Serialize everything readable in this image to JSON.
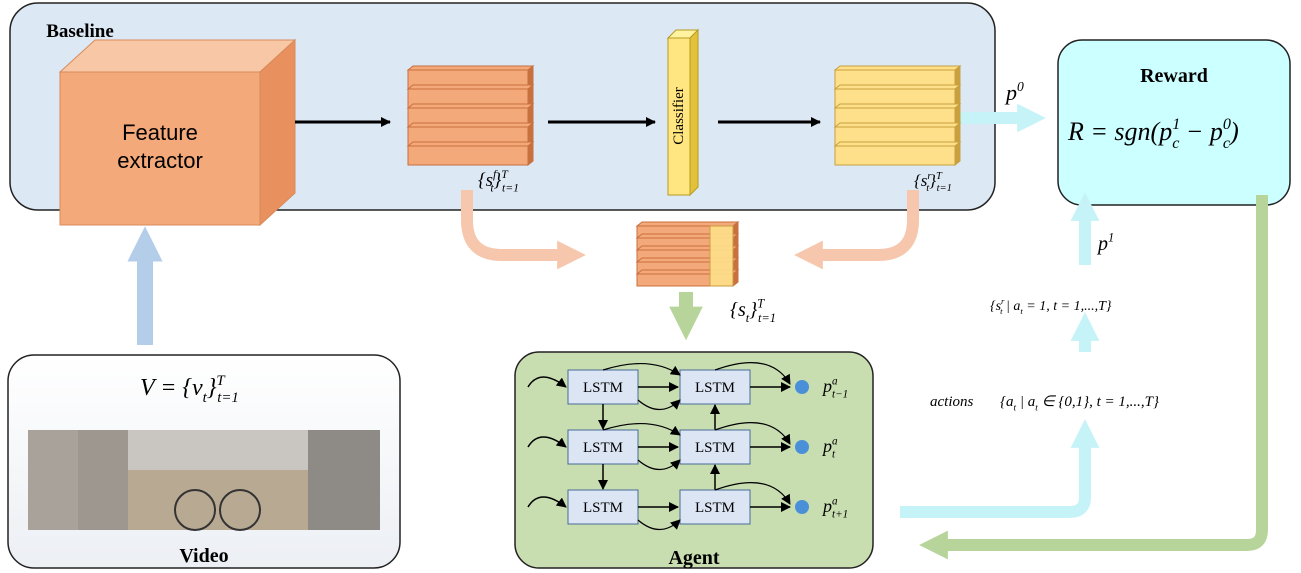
{
  "baseline": {
    "title": "Baseline",
    "feature_extractor": [
      "Feature",
      "extractor"
    ],
    "classifier": "Classifier",
    "feature_states": [
      {
        "t": "{s",
        "sub": "t",
        "sup": "f"
      },
      {
        "t": "}",
        "sub": "t=1",
        "sup": "T"
      }
    ],
    "refined_states": [
      {
        "t": "{s",
        "sub": "t",
        "sup": "r"
      },
      {
        "t": "}",
        "sub": "t=1",
        "sup": "T"
      }
    ],
    "output": [
      {
        "t": "p",
        "sup": "0"
      }
    ]
  },
  "reward": {
    "title": "Reward",
    "formula": [
      {
        "t": "R = sgn("
      },
      {
        "t": "p",
        "sub": "c",
        "sup": "1"
      },
      {
        "t": " − "
      },
      {
        "t": "p",
        "sub": "c",
        "sup": "0"
      },
      {
        "t": ")"
      }
    ]
  },
  "combined_states": [
    {
      "t": "{s",
      "sub": "t"
    },
    {
      "t": "}",
      "sub": "t=1",
      "sup": "T"
    }
  ],
  "selected_states": [
    {
      "t": "{s",
      "sub": "t",
      "sup": "r"
    },
    {
      "t": " | a",
      "sub": "t"
    },
    {
      "t": " = 1, t = 1,...,T}"
    }
  ],
  "selected_output": [
    {
      "t": "p",
      "sup": "1"
    }
  ],
  "actions": {
    "label": "actions",
    "formula": [
      {
        "t": "{a",
        "sub": "t"
      },
      {
        "t": " | a",
        "sub": "t"
      },
      {
        "t": " ∈ {0,1}, t = 1,...,T}"
      }
    ]
  },
  "video": {
    "title": "Video",
    "formula": [
      {
        "t": "V = {v",
        "sub": "t"
      },
      {
        "t": "}",
        "sub": "t=1",
        "sup": "T"
      }
    ]
  },
  "agent": {
    "title": "Agent",
    "cells": [
      "LSTM",
      "LSTM",
      "LSTM",
      "LSTM",
      "LSTM",
      "LSTM"
    ],
    "outputs": [
      [
        {
          "t": "p",
          "sub": "t−1",
          "sup": "a"
        }
      ],
      [
        {
          "t": "p",
          "sub": "t",
          "sup": "a"
        }
      ],
      [
        {
          "t": "p",
          "sub": "t+1",
          "sup": "a"
        }
      ]
    ]
  }
}
